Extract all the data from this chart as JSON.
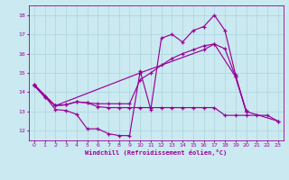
{
  "background_color": "#cbe9f0",
  "line_color": "#990099",
  "grid_color": "#b0d8e0",
  "xlabel": "Windchill (Refroidissement éolien,°C)",
  "xlim": [
    -0.5,
    23.5
  ],
  "ylim": [
    11.5,
    18.5
  ],
  "xticks": [
    0,
    1,
    2,
    3,
    4,
    5,
    6,
    7,
    8,
    9,
    10,
    11,
    12,
    13,
    14,
    15,
    16,
    17,
    18,
    19,
    20,
    21,
    22,
    23
  ],
  "yticks": [
    12,
    13,
    14,
    15,
    16,
    17,
    18
  ],
  "series": [
    {
      "x": [
        0,
        1,
        2,
        3,
        4,
        5,
        6,
        7,
        8,
        9,
        10,
        11,
        12,
        13,
        14,
        15,
        16,
        17,
        18,
        19,
        20
      ],
      "y": [
        14.4,
        13.8,
        13.1,
        13.05,
        12.85,
        12.1,
        12.1,
        11.85,
        11.75,
        11.75,
        15.1,
        13.1,
        16.8,
        17.0,
        16.6,
        17.2,
        17.4,
        18.0,
        17.2,
        14.9,
        13.0
      ]
    },
    {
      "x": [
        0,
        1,
        2,
        3,
        4,
        5,
        6,
        7,
        8,
        9,
        10,
        11,
        12,
        13,
        14,
        15,
        16,
        17,
        18,
        19,
        20,
        21,
        22,
        23
      ],
      "y": [
        14.35,
        13.75,
        13.3,
        13.35,
        13.5,
        13.45,
        13.25,
        13.2,
        13.2,
        13.2,
        13.2,
        13.2,
        13.2,
        13.2,
        13.2,
        13.2,
        13.2,
        13.2,
        12.8,
        12.8,
        12.8,
        12.8,
        12.8,
        12.5
      ]
    },
    {
      "x": [
        0,
        1,
        2,
        3,
        4,
        5,
        6,
        7,
        8,
        9,
        10,
        11,
        12,
        13,
        14,
        15,
        16,
        17,
        18,
        19,
        20
      ],
      "y": [
        14.35,
        13.75,
        13.3,
        13.35,
        13.5,
        13.45,
        13.4,
        13.4,
        13.4,
        13.4,
        14.65,
        15.0,
        15.4,
        15.75,
        16.0,
        16.2,
        16.4,
        16.5,
        16.25,
        14.8,
        13.05
      ]
    },
    {
      "x": [
        0,
        2,
        10,
        16,
        17,
        19,
        20,
        23
      ],
      "y": [
        14.4,
        13.3,
        15.0,
        16.2,
        16.5,
        14.8,
        13.0,
        12.5
      ]
    }
  ]
}
